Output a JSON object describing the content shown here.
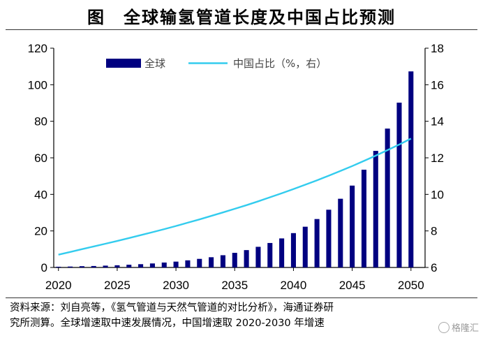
{
  "header": {
    "figure_label": "图",
    "title": "全球输氢管道长度及中国占比预测"
  },
  "chart_data": {
    "type": "bar",
    "title": "全球输氢管道长度及中国占比预测",
    "x": [
      2020,
      2021,
      2022,
      2023,
      2024,
      2025,
      2026,
      2027,
      2028,
      2029,
      2030,
      2031,
      2032,
      2033,
      2034,
      2035,
      2036,
      2037,
      2038,
      2039,
      2040,
      2041,
      2042,
      2043,
      2044,
      2045,
      2046,
      2047,
      2048,
      2049,
      2050
    ],
    "x_ticks": [
      2020,
      2025,
      2030,
      2035,
      2040,
      2045,
      2050
    ],
    "xlim": [
      2019.6,
      2051.2
    ],
    "series": [
      {
        "name": "全球",
        "type": "bar",
        "axis": "left",
        "color": "#000080",
        "values": [
          0.4,
          0.5,
          0.7,
          0.8,
          1.0,
          1.2,
          1.5,
          1.8,
          2.2,
          2.7,
          3.2,
          3.9,
          4.7,
          5.6,
          6.7,
          8.0,
          9.5,
          11.3,
          13.4,
          15.9,
          18.8,
          22.3,
          26.5,
          31.6,
          37.6,
          44.8,
          53.5,
          63.8,
          76.0,
          90.2,
          107.3
        ]
      },
      {
        "name": "中国占比（%，右）",
        "type": "line",
        "axis": "right",
        "color": "#33CCEE",
        "values": [
          6.7,
          6.85,
          7.0,
          7.15,
          7.3,
          7.45,
          7.61,
          7.77,
          7.93,
          8.1,
          8.27,
          8.45,
          8.63,
          8.82,
          9.01,
          9.21,
          9.41,
          9.62,
          9.84,
          10.06,
          10.29,
          10.53,
          10.77,
          11.02,
          11.28,
          11.55,
          11.83,
          12.12,
          12.42,
          12.73,
          13.05
        ]
      }
    ],
    "y_left": {
      "ylim": [
        0,
        120
      ],
      "ticks": [
        0,
        20,
        40,
        60,
        80,
        100,
        120
      ]
    },
    "y_right": {
      "ylim": [
        6,
        18
      ],
      "ticks": [
        6,
        8,
        10,
        12,
        14,
        16,
        18
      ]
    },
    "legend": "top-center",
    "grid": false
  },
  "source": {
    "line1": "资料来源：刘自亮等，《氢气管道与天然气管道的对比分析》，海通证券研",
    "line2": "究所测算。全球增速取中速发展情况，中国增速取 2020-2030 年增速"
  },
  "watermark": {
    "text": "格隆汇",
    "icon": "gelonghui-logo-icon"
  }
}
